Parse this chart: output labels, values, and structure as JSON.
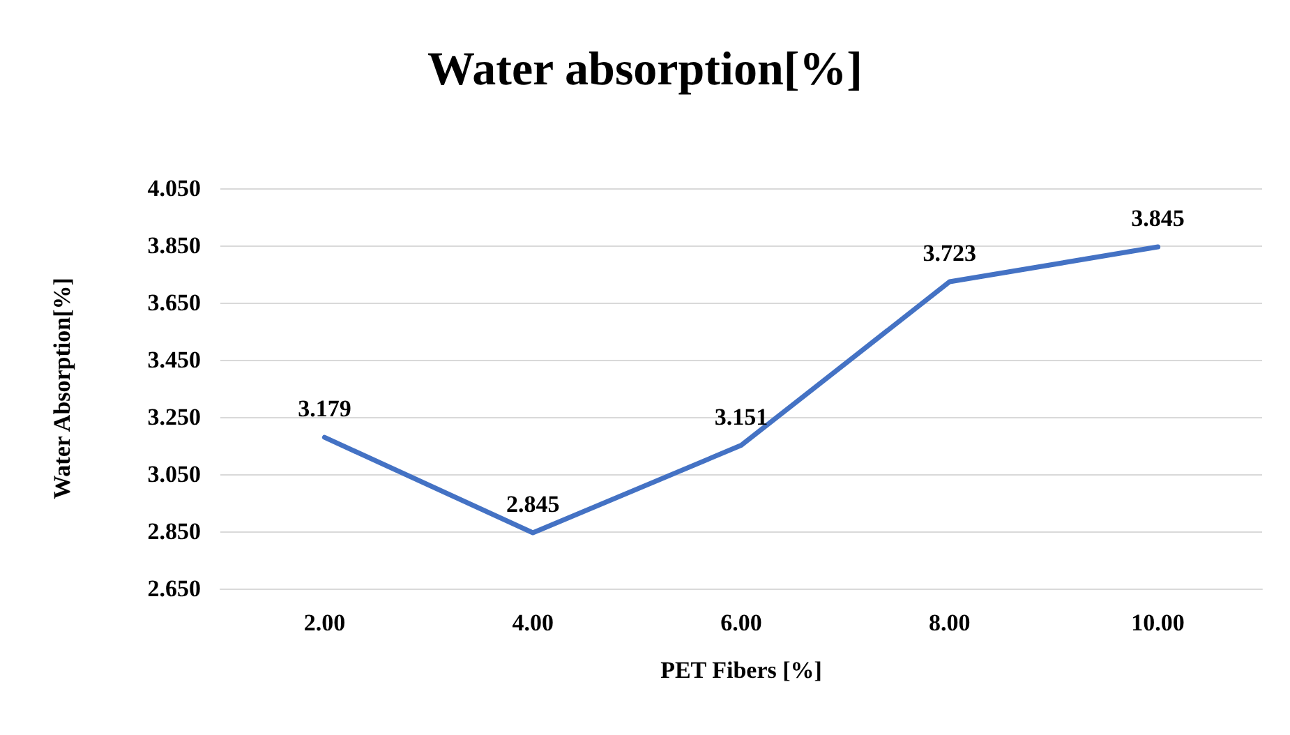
{
  "chart_data": {
    "type": "line",
    "title": "Water absorption[%]",
    "xlabel": "PET Fibers [%]",
    "ylabel": "Water Absorption[%]",
    "categories": [
      "2.00",
      "4.00",
      "6.00",
      "8.00",
      "10.00"
    ],
    "series": [
      {
        "color": "#4472c4",
        "values": [
          3.179,
          2.845,
          3.151,
          3.723,
          3.845
        ]
      }
    ],
    "ylim": [
      2.65,
      4.05
    ],
    "yticks": [
      {
        "value": 2.65,
        "label": "2.650"
      },
      {
        "value": 2.85,
        "label": "2.850"
      },
      {
        "value": 3.05,
        "label": "3.050"
      },
      {
        "value": 3.25,
        "label": "3.250"
      },
      {
        "value": 3.45,
        "label": "3.450"
      },
      {
        "value": 3.65,
        "label": "3.650"
      },
      {
        "value": 3.85,
        "label": "3.850"
      },
      {
        "value": 4.05,
        "label": "4.050"
      }
    ],
    "grid": "y",
    "data_labels": true,
    "marker": "none",
    "line_style": "solid"
  }
}
